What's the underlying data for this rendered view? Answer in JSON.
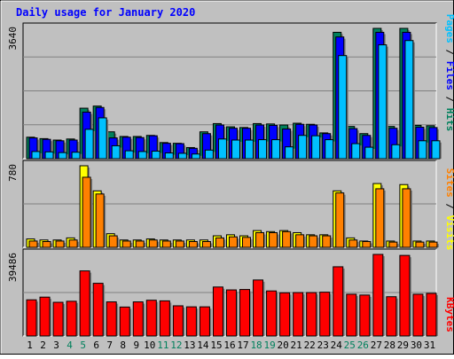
{
  "chart_data": {
    "type": "bar",
    "title": "Daily usage for January 2020",
    "categories": [
      "1",
      "2",
      "3",
      "4",
      "5",
      "6",
      "7",
      "8",
      "9",
      "10",
      "11",
      "12",
      "13",
      "14",
      "15",
      "16",
      "17",
      "18",
      "19",
      "20",
      "21",
      "22",
      "23",
      "24",
      "25",
      "26",
      "27",
      "28",
      "29",
      "30",
      "31"
    ],
    "weekend_days": [
      "4",
      "5",
      "11",
      "12",
      "18",
      "19",
      "25",
      "26"
    ],
    "panels": [
      {
        "id": "hits-files-pages",
        "ymax_label": "3640",
        "ylim": [
          0,
          3640
        ],
        "series": [
          {
            "name": "Hits",
            "color": "#00805c",
            "values": [
              600,
              560,
              520,
              550,
              1410,
              1470,
              750,
              620,
              620,
              650,
              450,
              430,
              310,
              750,
              980,
              890,
              870,
              980,
              970,
              940,
              990,
              960,
              720,
              3530,
              900,
              700,
              3640,
              900,
              3640,
              930,
              920
            ]
          },
          {
            "name": "Files",
            "color": "#0000ff",
            "values": [
              580,
              540,
              500,
              520,
              1300,
              1430,
              580,
              600,
              590,
              640,
              430,
              420,
              290,
              700,
              940,
              850,
              850,
              940,
              930,
              830,
              960,
              940,
              700,
              3400,
              840,
              650,
              3530,
              850,
              3530,
              880,
              870
            ]
          },
          {
            "name": "Pages",
            "color": "#00c0ff",
            "values": [
              200,
              190,
              170,
              180,
              820,
              1140,
              360,
              220,
              200,
              210,
              160,
              150,
              130,
              240,
              550,
              520,
              520,
              530,
              530,
              330,
              650,
              640,
              530,
              2880,
              420,
              320,
              3180,
              390,
              3300,
              500,
              500
            ]
          }
        ]
      },
      {
        "id": "sites-visits",
        "ymax_label": "780",
        "ylim": [
          0,
          780
        ],
        "series": [
          {
            "name": "Visits",
            "color": "#ffff00",
            "values": [
              80,
              70,
              70,
              90,
              780,
              540,
              130,
              70,
              70,
              80,
              70,
              70,
              70,
              70,
              110,
              120,
              110,
              160,
              150,
              160,
              140,
              120,
              120,
              540,
              90,
              60,
              610,
              60,
              600,
              60,
              60
            ]
          },
          {
            "name": "Sites",
            "color": "#ff8000",
            "values": [
              60,
              55,
              60,
              70,
              670,
              510,
              110,
              60,
              60,
              70,
              60,
              60,
              55,
              55,
              90,
              100,
              95,
              140,
              140,
              150,
              120,
              110,
              110,
              520,
              70,
              55,
              560,
              50,
              560,
              50,
              50
            ]
          }
        ]
      },
      {
        "id": "kbytes",
        "ymax_label": "39486",
        "ylim": [
          0,
          39486
        ],
        "series": [
          {
            "name": "KBytes",
            "color": "#ff0000",
            "values": [
              17500,
              18800,
              16300,
              16800,
              31500,
              25500,
              16500,
              14000,
              16500,
              17300,
              17000,
              14600,
              14100,
              14100,
              23700,
              22300,
              22500,
              27100,
              21800,
              20900,
              21000,
              21000,
              21200,
              33500,
              20200,
              19800,
              39486,
              19000,
              39000,
              20200,
              20600
            ]
          }
        ]
      }
    ],
    "right_labels": {
      "top": [
        {
          "text": "Pages",
          "color": "#00c0ff"
        },
        {
          "text": " / ",
          "color": "#000000"
        },
        {
          "text": "Files",
          "color": "#0000ff"
        },
        {
          "text": " / ",
          "color": "#000000"
        },
        {
          "text": "Hits",
          "color": "#00805c"
        }
      ],
      "middle": [
        {
          "text": "Sites",
          "color": "#ff8000"
        },
        {
          "text": " / ",
          "color": "#000000"
        },
        {
          "text": "Visits",
          "color": "#ffff00"
        }
      ],
      "bottom": [
        {
          "text": "KBytes",
          "color": "#ff0000"
        }
      ]
    },
    "colors": {
      "background": "#c0c0c0",
      "plot_bg": "#c0c0c0",
      "title": "#0000ff",
      "weekday_label": "#000000",
      "weekend_label": "#00805c",
      "grid": "#808080"
    },
    "grid": true
  }
}
